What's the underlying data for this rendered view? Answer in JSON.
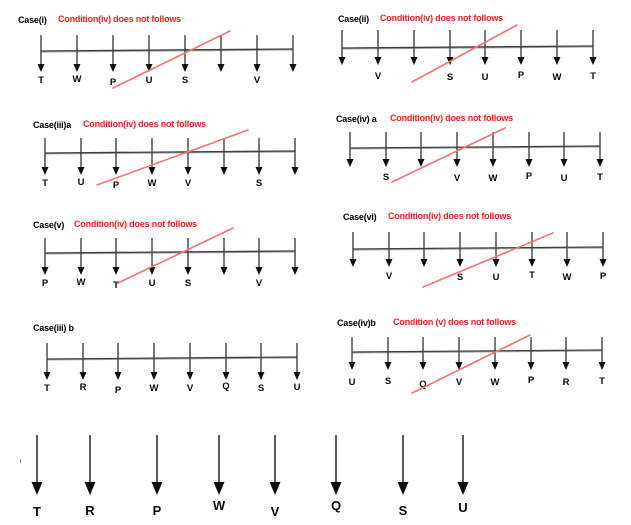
{
  "page": {
    "background": "#ffffff"
  },
  "colors": {
    "baseline": "#3f3f3f",
    "baseline_shadow": "#a6a6a6",
    "arrow_stem": "#404040",
    "arrow_head": "#0d0d0d",
    "strike_line": "#f87171",
    "note_text": "#fe1b1b",
    "label_text": "#000000",
    "letter_text": "#0a0a0a"
  },
  "cases": [
    {
      "label": "Case(i)",
      "note": "Condition(iv) does not follows",
      "letters": [
        "T",
        "W",
        "P",
        "U",
        "S",
        "",
        "V",
        ""
      ],
      "struck_out": true
    },
    {
      "label": "Case(ii)",
      "note": "Condition(iv) does not follows",
      "letters": [
        "",
        "V",
        "",
        "S",
        "U",
        "P",
        "W",
        "T"
      ],
      "struck_out": true
    },
    {
      "label": "Case(iii)a",
      "note": "Condition(iv) does not follows",
      "letters": [
        "T",
        "U",
        "P",
        "W",
        "V",
        "",
        "S",
        ""
      ],
      "struck_out": true
    },
    {
      "label": "Case(iv) a",
      "note": "Condition(iv) does not follows",
      "letters": [
        "",
        "S",
        "",
        "V",
        "W",
        "P",
        "U",
        "T"
      ],
      "struck_out": true
    },
    {
      "label": "Case(v)",
      "note": "Condition(iv) does not follows",
      "letters": [
        "P",
        "W",
        "T",
        "U",
        "S",
        "",
        "V",
        ""
      ],
      "struck_out": true
    },
    {
      "label": "Case(vi)",
      "note": "Condition(iv) does not follows",
      "letters": [
        "",
        "V",
        "",
        "S",
        "U",
        "T",
        "W",
        "P"
      ],
      "struck_out": true
    },
    {
      "label": "Case(iii) b",
      "note": "",
      "letters": [
        "T",
        "R",
        "P",
        "W",
        "V",
        "Q",
        "S",
        "U"
      ],
      "struck_out": false
    },
    {
      "label": "Case(iv)b",
      "note": "Condition (v) does not follows",
      "letters": [
        "U",
        "S",
        "Q",
        "V",
        "W",
        "P",
        "R",
        "T"
      ],
      "struck_out": true
    }
  ],
  "final_arrangement": {
    "letters": [
      "T",
      "R",
      "P",
      "W",
      "V",
      "Q",
      "S",
      "U"
    ]
  }
}
